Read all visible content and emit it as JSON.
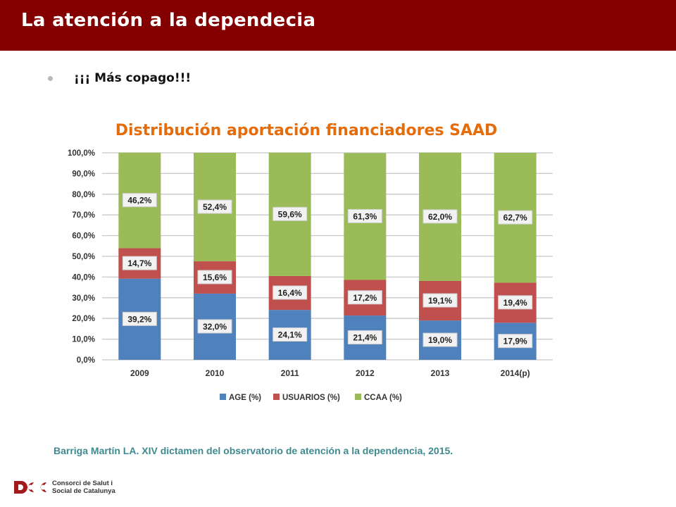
{
  "header": {
    "title": "La atención a la dependecia"
  },
  "bullet": {
    "text": "¡¡¡ Más copago!!!"
  },
  "citation": "Barriga Martín LA. XIV dictamen del observatorio de atención a la dependencia, 2015.",
  "logo": {
    "line1": "Consorci de Salut i",
    "line2": "Social de Catalunya",
    "mark_color": "#a31a1a"
  },
  "chart_data": {
    "type": "bar",
    "stacked": true,
    "title": "Distribución aportación financiadores SAAD",
    "categories": [
      "2009",
      "2010",
      "2011",
      "2012",
      "2013",
      "2014(p)"
    ],
    "series": [
      {
        "name": "AGE (%)",
        "color": "#4f81bd",
        "values": [
          39.2,
          32.0,
          24.1,
          21.4,
          19.0,
          17.9
        ],
        "labels": [
          "39,2%",
          "32,0%",
          "24,1%",
          "21,4%",
          "19,0%",
          "17,9%"
        ]
      },
      {
        "name": "USUARIOS (%)",
        "color": "#c0504d",
        "values": [
          14.7,
          15.6,
          16.4,
          17.2,
          19.1,
          19.4
        ],
        "labels": [
          "14,7%",
          "15,6%",
          "16,4%",
          "17,2%",
          "19,1%",
          "19,4%"
        ]
      },
      {
        "name": "CCAA (%)",
        "color": "#9bbb59",
        "values": [
          46.2,
          52.4,
          59.6,
          61.3,
          62.0,
          62.7
        ],
        "labels": [
          "46,2%",
          "52,4%",
          "59,6%",
          "61,3%",
          "62,0%",
          "62,7%"
        ]
      }
    ],
    "ylim": [
      0,
      100
    ],
    "yticks": [
      "0,0%",
      "10,0%",
      "20,0%",
      "30,0%",
      "40,0%",
      "50,0%",
      "60,0%",
      "70,0%",
      "80,0%",
      "90,0%",
      "100,0%"
    ],
    "grid": true,
    "legend": "bottom",
    "title_color": "#e46c0a"
  }
}
